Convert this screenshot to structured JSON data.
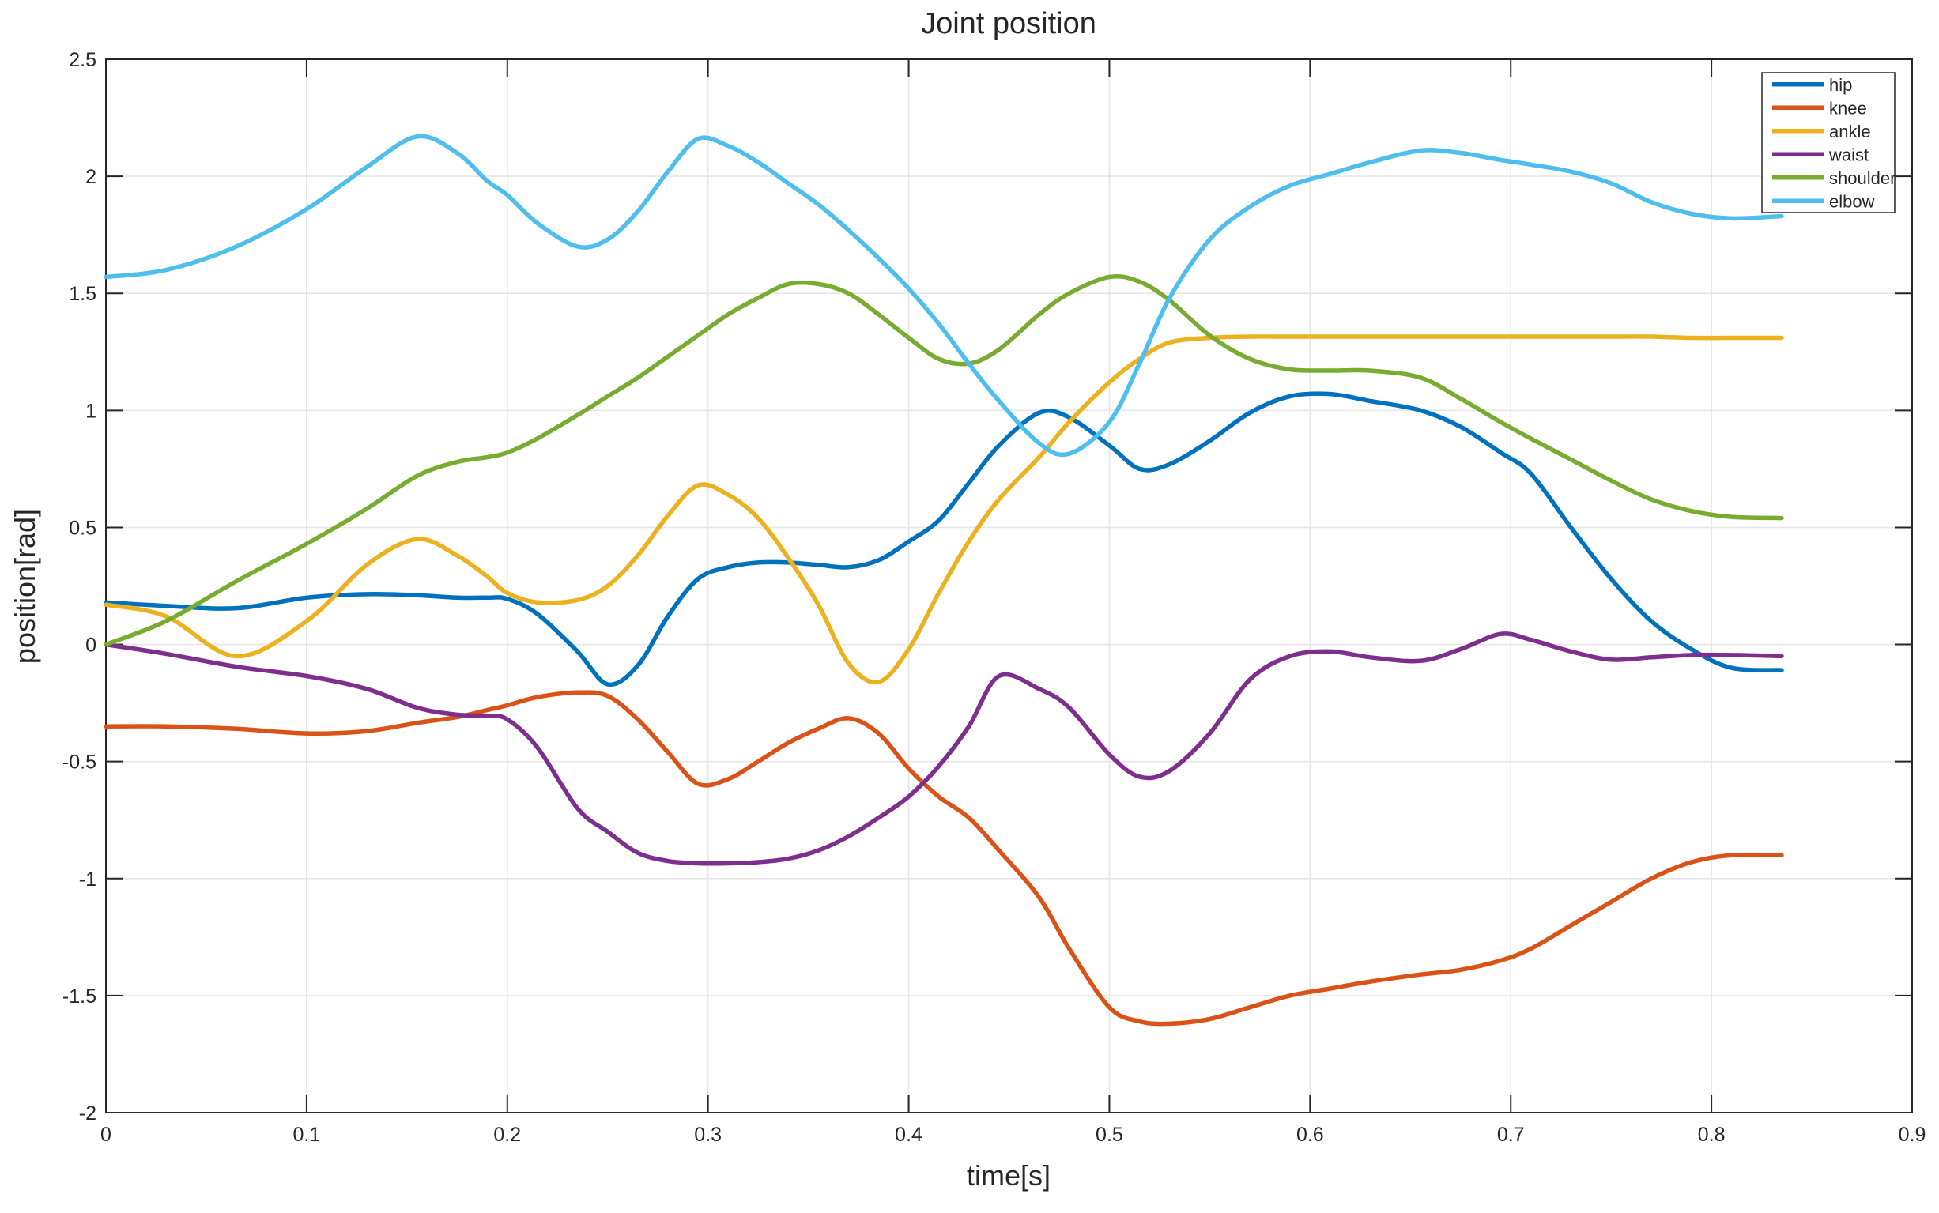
{
  "title": "Joint position",
  "axes": {
    "xlabel": "time[s]",
    "ylabel": "position[rad]",
    "x_ticks": [
      0,
      0.1,
      0.2,
      0.3,
      0.4,
      0.5,
      0.6,
      0.7,
      0.8,
      0.9
    ],
    "x_tick_labels": [
      "0",
      "0.1",
      "0.2",
      "0.3",
      "0.4",
      "0.5",
      "0.6",
      "0.7",
      "0.8",
      "0.9"
    ],
    "y_ticks": [
      -2,
      -1.5,
      -1,
      -0.5,
      0,
      0.5,
      1,
      1.5,
      2,
      2.5
    ],
    "y_tick_labels": [
      "-2",
      "-1.5",
      "-1",
      "-0.5",
      "0",
      "0.5",
      "1",
      "1.5",
      "2",
      "2.5"
    ]
  },
  "colors": {
    "axis": "#262626",
    "grid": "#e6e6e6",
    "background": "#ffffff",
    "hip": "#0072BD",
    "knee": "#D95319",
    "ankle": "#EDB120",
    "waist": "#7E2F8E",
    "shoulder": "#77AC30",
    "elbow": "#4DBEEE"
  },
  "legend": {
    "position": "top-right",
    "entries": [
      "hip",
      "knee",
      "ankle",
      "waist",
      "shoulder",
      "elbow"
    ]
  },
  "chart_data": {
    "type": "line",
    "title": "Joint position",
    "xlabel": "time[s]",
    "ylabel": "position[rad]",
    "xlim": [
      0,
      0.9
    ],
    "ylim": [
      -2,
      2.5
    ],
    "grid": true,
    "legend_position": "top-right",
    "x": [
      0,
      0.03,
      0.065,
      0.1,
      0.13,
      0.155,
      0.175,
      0.19,
      0.2,
      0.215,
      0.235,
      0.25,
      0.265,
      0.28,
      0.295,
      0.31,
      0.325,
      0.34,
      0.355,
      0.37,
      0.385,
      0.4,
      0.415,
      0.43,
      0.445,
      0.465,
      0.48,
      0.5,
      0.515,
      0.53,
      0.55,
      0.57,
      0.59,
      0.61,
      0.63,
      0.655,
      0.675,
      0.695,
      0.71,
      0.73,
      0.75,
      0.77,
      0.79,
      0.81,
      0.835
    ],
    "series": [
      {
        "name": "hip",
        "color": "#0072BD",
        "values": [
          0.18,
          0.165,
          0.155,
          0.2,
          0.215,
          0.21,
          0.2,
          0.2,
          0.195,
          0.13,
          -0.03,
          -0.17,
          -0.09,
          0.12,
          0.28,
          0.33,
          0.35,
          0.35,
          0.34,
          0.33,
          0.36,
          0.44,
          0.53,
          0.69,
          0.85,
          0.99,
          0.97,
          0.85,
          0.75,
          0.77,
          0.87,
          0.99,
          1.06,
          1.07,
          1.04,
          1.0,
          0.93,
          0.82,
          0.73,
          0.5,
          0.28,
          0.1,
          -0.02,
          -0.1,
          -0.11
        ]
      },
      {
        "name": "knee",
        "color": "#D95319",
        "values": [
          -0.35,
          -0.35,
          -0.36,
          -0.38,
          -0.37,
          -0.335,
          -0.31,
          -0.28,
          -0.26,
          -0.225,
          -0.205,
          -0.22,
          -0.32,
          -0.46,
          -0.595,
          -0.575,
          -0.5,
          -0.42,
          -0.36,
          -0.315,
          -0.38,
          -0.53,
          -0.65,
          -0.74,
          -0.88,
          -1.08,
          -1.3,
          -1.55,
          -1.61,
          -1.62,
          -1.6,
          -1.55,
          -1.5,
          -1.47,
          -1.44,
          -1.41,
          -1.39,
          -1.35,
          -1.3,
          -1.2,
          -1.1,
          -1.0,
          -0.93,
          -0.9,
          -0.9
        ]
      },
      {
        "name": "ankle",
        "color": "#EDB120",
        "values": [
          0.17,
          0.12,
          -0.05,
          0.1,
          0.34,
          0.45,
          0.38,
          0.29,
          0.22,
          0.18,
          0.19,
          0.25,
          0.38,
          0.55,
          0.68,
          0.64,
          0.54,
          0.37,
          0.17,
          -0.08,
          -0.16,
          -0.02,
          0.22,
          0.44,
          0.62,
          0.8,
          0.95,
          1.12,
          1.22,
          1.29,
          1.31,
          1.315,
          1.315,
          1.315,
          1.315,
          1.315,
          1.315,
          1.315,
          1.315,
          1.315,
          1.315,
          1.315,
          1.31,
          1.31,
          1.31
        ]
      },
      {
        "name": "waist",
        "color": "#7E2F8E",
        "values": [
          0.0,
          -0.04,
          -0.095,
          -0.135,
          -0.19,
          -0.27,
          -0.3,
          -0.305,
          -0.32,
          -0.44,
          -0.7,
          -0.8,
          -0.89,
          -0.925,
          -0.935,
          -0.935,
          -0.93,
          -0.915,
          -0.88,
          -0.82,
          -0.74,
          -0.65,
          -0.52,
          -0.35,
          -0.135,
          -0.19,
          -0.27,
          -0.47,
          -0.565,
          -0.54,
          -0.38,
          -0.15,
          -0.05,
          -0.03,
          -0.055,
          -0.07,
          -0.02,
          0.045,
          0.02,
          -0.03,
          -0.065,
          -0.055,
          -0.045,
          -0.045,
          -0.05
        ]
      },
      {
        "name": "shoulder",
        "color": "#77AC30",
        "values": [
          0.0,
          0.1,
          0.27,
          0.43,
          0.58,
          0.72,
          0.78,
          0.8,
          0.82,
          0.88,
          0.98,
          1.06,
          1.14,
          1.23,
          1.32,
          1.41,
          1.48,
          1.54,
          1.54,
          1.5,
          1.41,
          1.31,
          1.22,
          1.2,
          1.26,
          1.41,
          1.5,
          1.57,
          1.55,
          1.47,
          1.32,
          1.22,
          1.175,
          1.17,
          1.17,
          1.14,
          1.05,
          0.95,
          0.88,
          0.79,
          0.7,
          0.62,
          0.57,
          0.545,
          0.54
        ]
      },
      {
        "name": "elbow",
        "color": "#4DBEEE",
        "values": [
          1.57,
          1.6,
          1.7,
          1.86,
          2.04,
          2.17,
          2.1,
          1.98,
          1.92,
          1.8,
          1.7,
          1.73,
          1.85,
          2.02,
          2.16,
          2.13,
          2.06,
          1.97,
          1.88,
          1.77,
          1.65,
          1.52,
          1.37,
          1.2,
          1.04,
          0.86,
          0.815,
          0.95,
          1.2,
          1.48,
          1.73,
          1.87,
          1.96,
          2.01,
          2.06,
          2.11,
          2.1,
          2.07,
          2.05,
          2.02,
          1.97,
          1.89,
          1.84,
          1.82,
          1.83
        ]
      }
    ]
  }
}
